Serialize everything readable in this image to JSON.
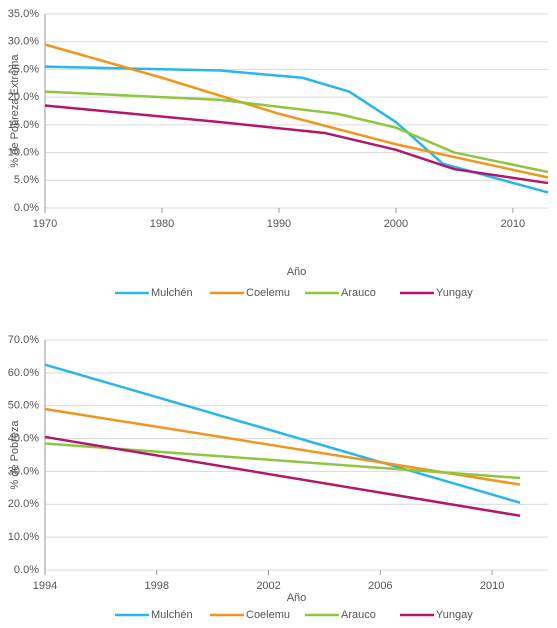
{
  "chart_data": [
    {
      "type": "line",
      "x_label": "Año",
      "y_label": "% de Pobreza Extrema",
      "xlim": [
        1970,
        2013
      ],
      "xticks": [
        1970,
        1980,
        1990,
        2000,
        2010
      ],
      "ylim": [
        0,
        35
      ],
      "yticks": [
        {
          "value": 0,
          "label": "0.0%"
        },
        {
          "value": 5,
          "label": "5.0%"
        },
        {
          "value": 10,
          "label": "10.0%"
        },
        {
          "value": 15,
          "label": "15.0%"
        },
        {
          "value": 20,
          "label": "20.0%"
        },
        {
          "value": 25,
          "label": "25.0%"
        },
        {
          "value": 30,
          "label": "30.0%"
        },
        {
          "value": 35,
          "label": "35.0%"
        }
      ],
      "series": [
        {
          "name": "Mulchén",
          "color": "#29b6e8",
          "x": [
            1970,
            1985,
            1992,
            1996,
            2000,
            2004,
            2013
          ],
          "values": [
            25.5,
            24.8,
            23.5,
            21,
            15.5,
            8,
            2.8
          ]
        },
        {
          "name": "Coelemu",
          "color": "#f0961e",
          "x": [
            1970,
            1980,
            1990,
            2000,
            2013
          ],
          "values": [
            29.5,
            23.5,
            17,
            11.5,
            5.5
          ]
        },
        {
          "name": "Arauco",
          "color": "#8dc63f",
          "x": [
            1970,
            1985,
            1995,
            2000,
            2005,
            2013
          ],
          "values": [
            21,
            19.5,
            17,
            14.5,
            10,
            6.5
          ]
        },
        {
          "name": "Yungay",
          "color": "#b3176c",
          "x": [
            1970,
            1985,
            1994,
            2000,
            2005,
            2013
          ],
          "values": [
            18.5,
            15.5,
            13.5,
            10.5,
            7,
            4.5
          ]
        }
      ]
    },
    {
      "type": "line",
      "x_label": "Año",
      "y_label": "% de Pobreza",
      "xlim": [
        1994,
        2012
      ],
      "xticks": [
        1994,
        1998,
        2002,
        2006,
        2010
      ],
      "ylim": [
        0,
        70
      ],
      "yticks": [
        {
          "value": 0,
          "label": "0.0%"
        },
        {
          "value": 10,
          "label": "10.0%"
        },
        {
          "value": 20,
          "label": "20.0%"
        },
        {
          "value": 30,
          "label": "30.0%"
        },
        {
          "value": 40,
          "label": "40.0%"
        },
        {
          "value": 50,
          "label": "50.0%"
        },
        {
          "value": 60,
          "label": "60.0%"
        },
        {
          "value": 70,
          "label": "70.0%"
        }
      ],
      "series": [
        {
          "name": "Mulchén",
          "color": "#29b6e8",
          "x": [
            1994,
            2011
          ],
          "values": [
            62.5,
            20.5
          ]
        },
        {
          "name": "Coelemu",
          "color": "#f0961e",
          "x": [
            1994,
            2011
          ],
          "values": [
            49,
            26
          ]
        },
        {
          "name": "Arauco",
          "color": "#8dc63f",
          "x": [
            1994,
            2011
          ],
          "values": [
            38.5,
            28
          ]
        },
        {
          "name": "Yungay",
          "color": "#b3176c",
          "x": [
            1994,
            2011
          ],
          "values": [
            40.5,
            16.5
          ]
        }
      ]
    }
  ]
}
